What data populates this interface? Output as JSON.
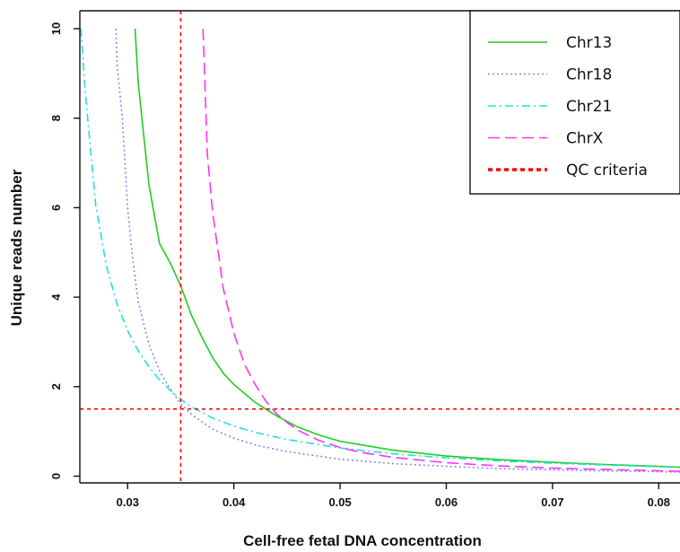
{
  "chart_data": {
    "type": "line",
    "xlabel": "Cell-free fetal DNA concentration",
    "ylabel": "Unique reads number",
    "xlim": [
      0.0255,
      0.082
    ],
    "ylim": [
      -0.15,
      10.4
    ],
    "x_ticks": [
      0.03,
      0.04,
      0.05,
      0.06,
      0.07,
      0.08
    ],
    "x_tick_labels": [
      "0.03",
      "0.04",
      "0.05",
      "0.06",
      "0.07",
      "0.08"
    ],
    "y_ticks": [
      0,
      2,
      4,
      6,
      8,
      10
    ],
    "y_tick_labels": [
      "0",
      "2",
      "4",
      "6",
      "8",
      "10"
    ],
    "grid": false,
    "legend_position": "top-right",
    "series": [
      {
        "name": "Chr13",
        "color": "#22cc22",
        "dash": "solid",
        "x": [
          0.0307,
          0.031,
          0.032,
          0.033,
          0.034,
          0.035,
          0.036,
          0.037,
          0.038,
          0.039,
          0.04,
          0.042,
          0.044,
          0.046,
          0.048,
          0.05,
          0.055,
          0.06,
          0.065,
          0.07,
          0.075,
          0.08,
          0.082
        ],
        "y": [
          10.0,
          8.78,
          6.52,
          5.2,
          4.77,
          4.25,
          3.6,
          3.1,
          2.65,
          2.3,
          2.05,
          1.65,
          1.35,
          1.1,
          0.92,
          0.78,
          0.58,
          0.45,
          0.37,
          0.31,
          0.26,
          0.22,
          0.2
        ]
      },
      {
        "name": "Chr18",
        "color": "#8888ee",
        "dash": "dotted",
        "x": [
          0.0289,
          0.029,
          0.0295,
          0.03,
          0.0305,
          0.031,
          0.032,
          0.033,
          0.034,
          0.035,
          0.036,
          0.038,
          0.04,
          0.042,
          0.045,
          0.05,
          0.055,
          0.06,
          0.065,
          0.07,
          0.075,
          0.08,
          0.082
        ],
        "y": [
          10.0,
          9.2,
          8.0,
          6.0,
          4.8,
          3.9,
          2.95,
          2.35,
          1.95,
          1.62,
          1.38,
          1.05,
          0.85,
          0.7,
          0.55,
          0.38,
          0.28,
          0.22,
          0.17,
          0.14,
          0.12,
          0.1,
          0.09
        ]
      },
      {
        "name": "Chr21",
        "color": "#22e0e0",
        "dash": "dashdot",
        "x": [
          0.0256,
          0.026,
          0.027,
          0.028,
          0.029,
          0.03,
          0.031,
          0.032,
          0.033,
          0.034,
          0.035,
          0.036,
          0.038,
          0.04,
          0.042,
          0.045,
          0.05,
          0.055,
          0.06,
          0.065,
          0.07,
          0.075,
          0.08,
          0.082
        ],
        "y": [
          10.0,
          8.6,
          6.05,
          4.7,
          3.85,
          3.25,
          2.8,
          2.45,
          2.15,
          1.92,
          1.72,
          1.55,
          1.3,
          1.12,
          0.98,
          0.82,
          0.63,
          0.5,
          0.41,
          0.34,
          0.29,
          0.25,
          0.21,
          0.2
        ]
      },
      {
        "name": "ChrX",
        "color": "#ff33ff",
        "dash": "longdash",
        "x": [
          0.0371,
          0.0375,
          0.038,
          0.039,
          0.04,
          0.041,
          0.042,
          0.043,
          0.044,
          0.045,
          0.046,
          0.048,
          0.05,
          0.052,
          0.055,
          0.06,
          0.065,
          0.07,
          0.075,
          0.08,
          0.082
        ],
        "y": [
          10.0,
          7.2,
          5.9,
          4.2,
          3.2,
          2.5,
          2.05,
          1.68,
          1.4,
          1.2,
          1.03,
          0.8,
          0.64,
          0.53,
          0.42,
          0.3,
          0.23,
          0.18,
          0.15,
          0.12,
          0.11
        ]
      }
    ],
    "qc_criteria": {
      "name": "QC criteria",
      "color": "#ff0000",
      "x": 0.035,
      "y": 1.5
    }
  }
}
